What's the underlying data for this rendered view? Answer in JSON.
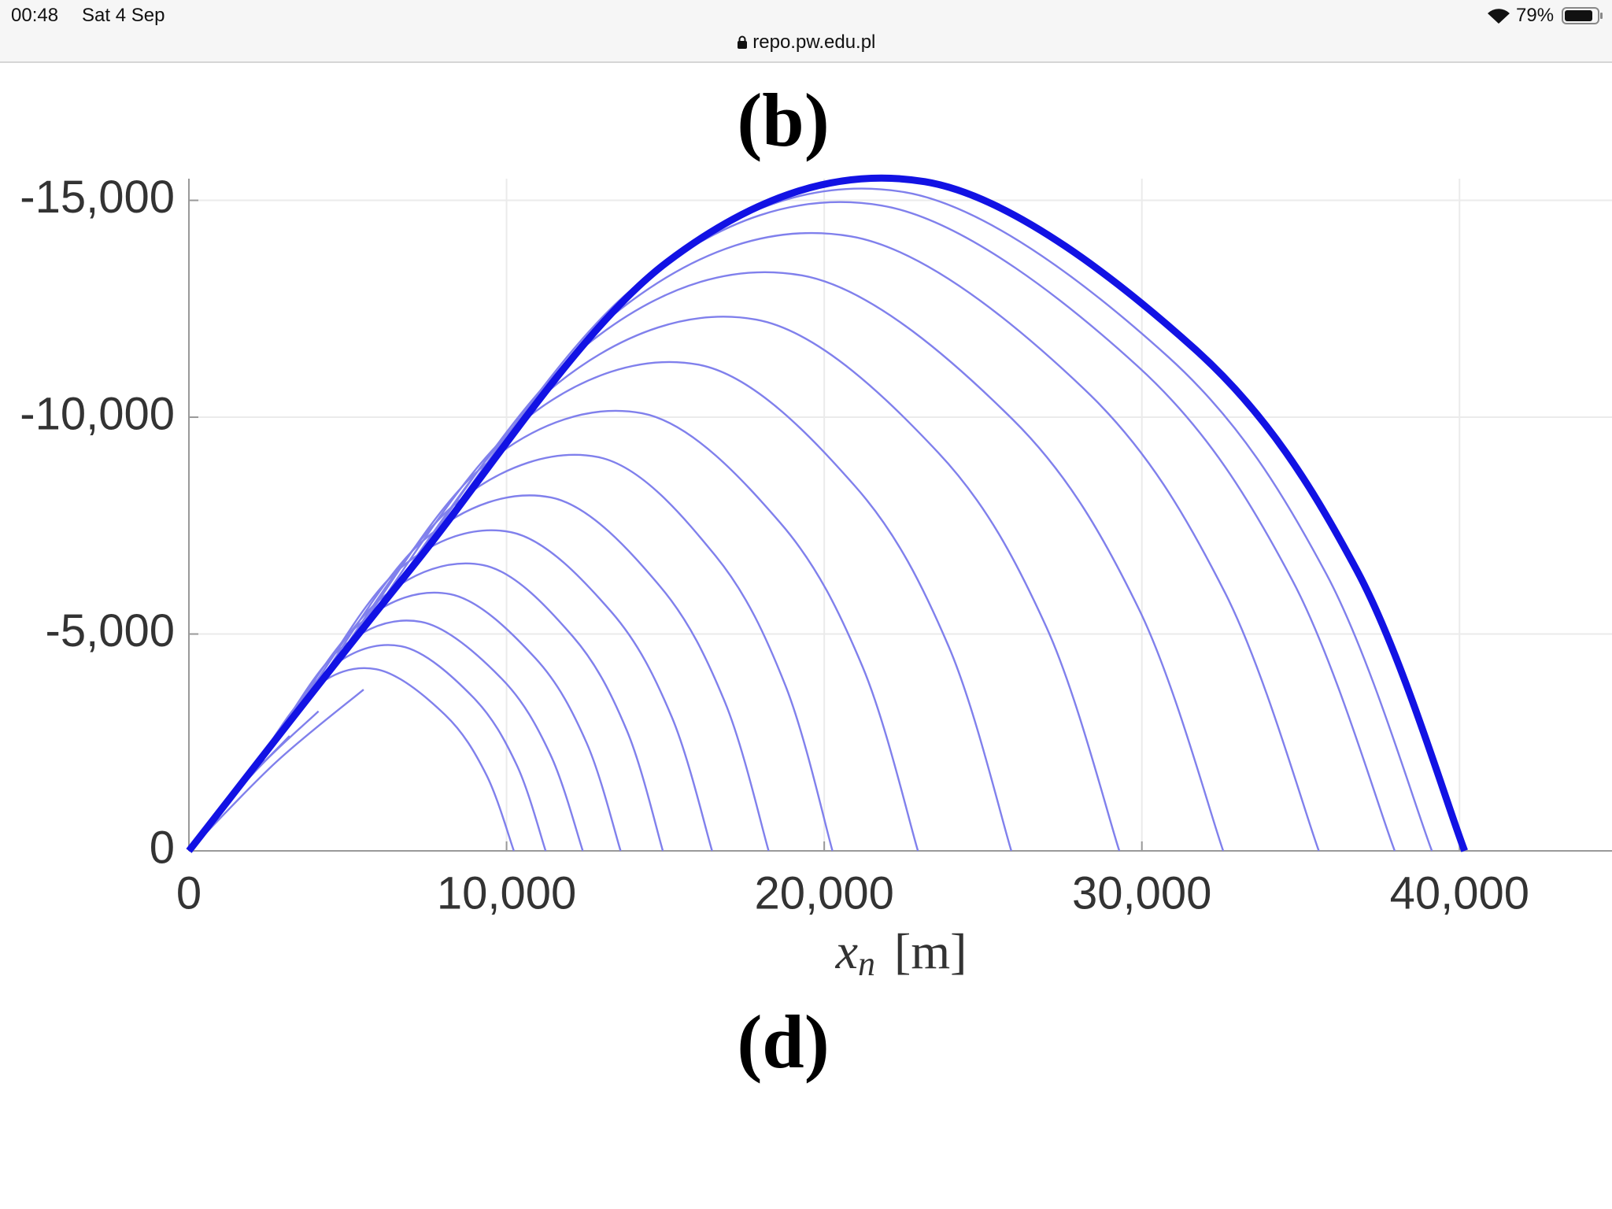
{
  "status_bar": {
    "time": "00:48",
    "date": "Sat 4 Sep",
    "battery": "79%"
  },
  "address_bar": {
    "url": "repo.pw.edu.pl"
  },
  "figure": {
    "top_label": "(b)",
    "bottom_label": "(d)"
  },
  "chart_data": {
    "type": "line",
    "x_label": "x",
    "x_label_subscript": "n",
    "x_label_unit": "[m]",
    "xlim": [
      0,
      44800
    ],
    "ylim": [
      0,
      -15500
    ],
    "xticks": [
      0,
      {
        "value": 10000,
        "label": "10,000"
      },
      {
        "value": 20000,
        "label": "20,000"
      },
      {
        "value": 30000,
        "label": "30,000"
      },
      {
        "value": 40000,
        "label": "40,000"
      }
    ],
    "yticks": [
      0,
      {
        "value": -5000,
        "label": "-5,000"
      },
      {
        "value": -10000,
        "label": "-10,000"
      },
      {
        "value": -15000,
        "label": "-15,000"
      }
    ],
    "grid": true,
    "series": [
      {
        "color": "#8080ec",
        "x": [
          0,
          910,
          1810
        ],
        "values": [
          0,
          -860,
          -1680
        ]
      },
      {
        "color": "#8080ec",
        "x": [
          0,
          1200,
          2400
        ],
        "values": [
          0,
          -1110,
          -2090
        ]
      },
      {
        "color": "#8080ec",
        "x": [
          0,
          1590,
          3170
        ],
        "values": [
          0,
          -1440,
          -2650
        ]
      },
      {
        "color": "#8080ec",
        "x": [
          0,
          2040,
          4080
        ],
        "values": [
          0,
          -1800,
          -3220
        ]
      },
      {
        "color": "#8080ec",
        "x": [
          0,
          2750,
          5500
        ],
        "values": [
          0,
          -2050,
          -3720
        ]
      },
      {
        "color": "#8080ec",
        "x": [
          0,
          1770,
          3830,
          5890,
          8060,
          9360,
          10230
        ],
        "values": [
          0,
          -1640,
          -3690,
          -4190,
          -3140,
          -1760,
          0
        ]
      },
      {
        "color": "#8080ec",
        "x": [
          0,
          2000,
          4340,
          6670,
          8950,
          10320,
          11230
        ],
        "values": [
          0,
          -1860,
          -4150,
          -4720,
          -3540,
          -1980,
          0
        ]
      },
      {
        "color": "#8080ec",
        "x": [
          0,
          2190,
          4750,
          7310,
          9860,
          11380,
          12400
        ],
        "values": [
          0,
          -2040,
          -4650,
          -5280,
          -3960,
          -2220,
          0
        ]
      },
      {
        "color": "#8080ec",
        "x": [
          0,
          2470,
          5340,
          8220,
          10910,
          12520,
          13590
        ],
        "values": [
          0,
          -2290,
          -5210,
          -5920,
          -4440,
          -2490,
          0
        ]
      },
      {
        "color": "#8080ec",
        "x": [
          0,
          2780,
          6020,
          9260,
          12090,
          13790,
          14920
        ],
        "values": [
          0,
          -2580,
          -5800,
          -6590,
          -4940,
          -2770,
          0
        ]
      },
      {
        "color": "#8080ec",
        "x": [
          0,
          3040,
          6580,
          10130,
          13300,
          15200,
          16470
        ],
        "values": [
          0,
          -2830,
          -6470,
          -7350,
          -5510,
          -3090,
          0
        ]
      },
      {
        "color": "#8080ec",
        "x": [
          0,
          3420,
          7400,
          11390,
          14820,
          16880,
          18250
        ],
        "values": [
          0,
          -3180,
          -7170,
          -8150,
          -6110,
          -3420,
          0
        ]
      },
      {
        "color": "#8080ec",
        "x": [
          0,
          3860,
          8370,
          12880,
          16570,
          18780,
          20260
        ],
        "values": [
          0,
          -3600,
          -7990,
          -9080,
          -6810,
          -3810,
          0
        ]
      },
      {
        "color": "#8080ec",
        "x": [
          0,
          4280,
          9280,
          14270,
          18610,
          21210,
          22950
        ],
        "values": [
          0,
          -3980,
          -8880,
          -10090,
          -7570,
          -4240,
          0
        ]
      },
      {
        "color": "#8080ec",
        "x": [
          0,
          4820,
          10430,
          16050,
          20970,
          23920,
          25890
        ],
        "values": [
          0,
          -4480,
          -9860,
          -11210,
          -8410,
          -4710,
          0
        ]
      },
      {
        "color": "#8080ec",
        "x": [
          0,
          5360,
          11610,
          17860,
          23580,
          27000,
          29290
        ],
        "values": [
          0,
          -4980,
          -10780,
          -12250,
          -9190,
          -5150,
          0
        ]
      },
      {
        "color": "#8080ec",
        "x": [
          0,
          5790,
          12540,
          19290,
          25930,
          29910,
          32560
        ],
        "values": [
          0,
          -5380,
          -11680,
          -13270,
          -9950,
          -5570,
          0
        ]
      },
      {
        "color": "#8080ec",
        "x": [
          0,
          6250,
          13550,
          20840,
          28210,
          32620,
          35570
        ],
        "values": [
          0,
          -5810,
          -12470,
          -14170,
          -10630,
          -5950,
          0
        ]
      },
      {
        "color": "#8080ec",
        "x": [
          0,
          6540,
          14180,
          21810,
          29890,
          34730,
          37960
        ],
        "values": [
          0,
          -6090,
          -13090,
          -14880,
          -11160,
          -6250,
          0
        ]
      },
      {
        "color": "#8080ec",
        "x": [
          0,
          6760,
          14640,
          22520,
          30830,
          35810,
          39130
        ],
        "values": [
          0,
          -6280,
          -13370,
          -15190,
          -11390,
          -6380,
          0
        ]
      },
      {
        "color": "#1212e4",
        "x": [
          0,
          6950,
          15060,
          23170,
          31670,
          36760,
          40160
        ],
        "values": [
          0,
          -6470,
          -13580,
          -15430,
          -11570,
          -6480,
          0
        ]
      }
    ]
  }
}
